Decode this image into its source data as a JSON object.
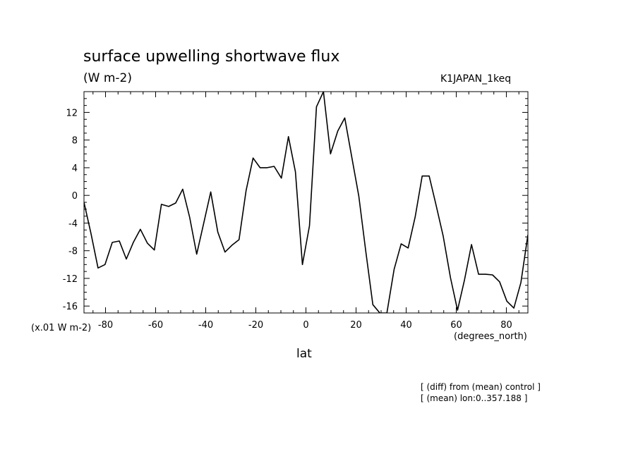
{
  "chart_data": {
    "type": "line",
    "title": "surface upwelling shortwave flux",
    "units": "(W m-2)",
    "run_name": "K1JAPAN_1keq",
    "scale_label": "(x.01 W m-2)",
    "xlabel": "lat",
    "xunits": "(degrees_north)",
    "xlim": [
      -88.6,
      88.6
    ],
    "ylim": [
      -17,
      15
    ],
    "xticks": [
      -80,
      -60,
      -40,
      -20,
      0,
      20,
      40,
      60,
      80
    ],
    "yticks": [
      -16,
      -12,
      -8,
      -4,
      0,
      4,
      8,
      12
    ],
    "xtick_labels": [
      "-80",
      "-60",
      "-40",
      "-20",
      "0",
      "20",
      "40",
      "60",
      "80"
    ],
    "ytick_labels": [
      "-16",
      "-12",
      "-8",
      "-4",
      "0",
      "4",
      "8",
      "12"
    ],
    "series": [
      {
        "x": [
          -88.6,
          -85.8,
          -83.0,
          -80.2,
          -77.3,
          -74.5,
          -71.7,
          -68.9,
          -66.1,
          -63.3,
          -60.5,
          -57.7,
          -54.8,
          -52.0,
          -49.2,
          -46.4,
          -43.6,
          -40.8,
          -38.0,
          -35.2,
          -32.3,
          -29.5,
          -26.7,
          -23.9,
          -21.1,
          -18.3,
          -15.5,
          -12.7,
          -9.8,
          -7.0,
          -4.2,
          -1.4,
          1.4,
          4.2,
          7.0,
          9.8,
          12.7,
          15.5,
          18.3,
          21.1,
          23.9,
          26.7,
          29.5,
          32.3,
          35.2,
          38.0,
          40.8,
          43.6,
          46.4,
          49.2,
          52.0,
          54.8,
          57.7,
          60.5,
          63.3,
          66.1,
          68.9,
          71.7,
          74.5,
          77.3,
          80.2,
          83.0,
          85.8,
          88.6
        ],
        "values": [
          -1.0,
          -5.5,
          -10.5,
          -10.0,
          -6.8,
          -6.6,
          -9.2,
          -6.8,
          -4.9,
          -6.9,
          -7.9,
          -1.3,
          -1.6,
          -1.1,
          0.9,
          -3.2,
          -8.5,
          -4.0,
          0.5,
          -5.3,
          -8.2,
          -7.2,
          -6.4,
          0.7,
          5.4,
          4.0,
          4.0,
          4.2,
          2.5,
          8.5,
          3.4,
          -10.0,
          -4.4,
          12.8,
          15.0,
          6.0,
          9.3,
          11.2,
          5.5,
          -0.1,
          -8.1,
          -15.8,
          -17.0,
          -17.0,
          -10.7,
          -7.0,
          -7.6,
          -3.1,
          2.8,
          2.8,
          -1.5,
          -5.9,
          -11.9,
          -16.6,
          -12.2,
          -7.1,
          -11.4,
          -11.4,
          -11.5,
          -12.5,
          -15.3,
          -16.3,
          -12.6,
          -5.7
        ]
      }
    ],
    "grid": false,
    "legend": "none"
  },
  "notes": {
    "line1": "[ (diff) from (mean) control ]",
    "line2": "[ (mean) lon:0..357.188 ]"
  }
}
